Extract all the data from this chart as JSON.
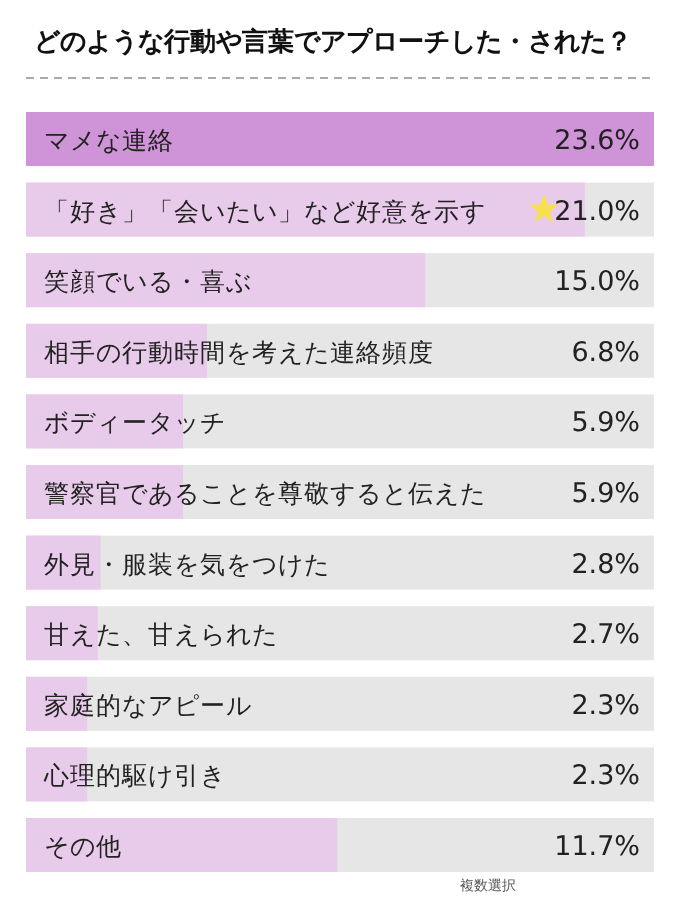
{
  "chart_data": {
    "type": "bar",
    "orientation": "horizontal",
    "title": "どのような行動や言葉でアプローチした・された？",
    "categories": [
      "マメな連絡",
      "「好き」「会いたい」など好意を示す",
      "笑顔でいる・喜ぶ",
      "相手の行動時間を考えた連絡頻度",
      "ボディータッチ",
      "警察官であることを尊敬すると伝えた",
      "外見・服装を気をつけた",
      "甘えた、甘えられた",
      "家庭的なアピール",
      "心理的駆け引き",
      "その他"
    ],
    "values": [
      23.6,
      21.0,
      15.0,
      6.8,
      5.9,
      5.9,
      2.8,
      2.7,
      2.3,
      2.3,
      11.7
    ],
    "value_labels": [
      "23.6%",
      "21.0%",
      "15.0%",
      "6.8%",
      "5.9%",
      "5.9%",
      "2.8%",
      "2.7%",
      "2.3%",
      "2.3%",
      "11.7%"
    ],
    "colors": [
      "#cf94d7",
      "#e8cbea",
      "#e8cbea",
      "#e8cbea",
      "#e8cbea",
      "#e8cbea",
      "#e8cbea",
      "#e8cbea",
      "#e8cbea",
      "#e8cbea",
      "#e8cbea"
    ],
    "annotations": [
      "複数選択"
    ]
  }
}
